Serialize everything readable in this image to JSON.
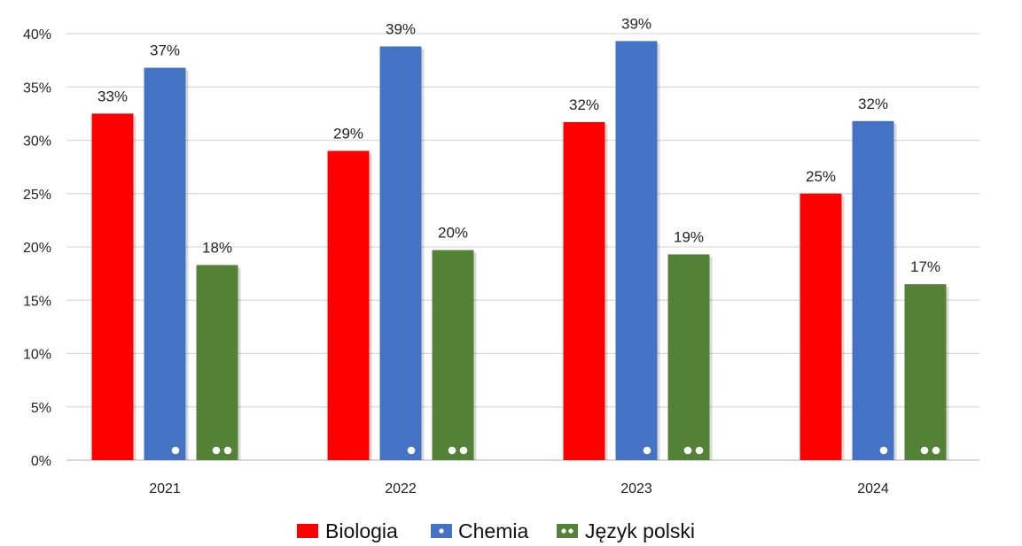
{
  "chart_data": {
    "type": "bar",
    "categories": [
      "2021",
      "2022",
      "2023",
      "2024"
    ],
    "series": [
      {
        "name": "Biologia",
        "color": "#ff0000",
        "pattern": "none",
        "values": [
          32.5,
          29.0,
          31.7,
          25.0
        ],
        "labels": [
          "33%",
          "29%",
          "32%",
          "25%"
        ]
      },
      {
        "name": "Chemia",
        "color": "#4472c4",
        "pattern": "one-dot",
        "values": [
          36.8,
          38.8,
          39.3,
          31.8
        ],
        "labels": [
          "37%",
          "39%",
          "39%",
          "32%"
        ]
      },
      {
        "name": "Język polski",
        "color": "#538135",
        "pattern": "two-dots",
        "values": [
          18.3,
          19.7,
          19.3,
          16.5
        ],
        "labels": [
          "18%",
          "20%",
          "19%",
          "17%"
        ]
      }
    ],
    "ylim": [
      0,
      40
    ],
    "yticks": [
      0,
      5,
      10,
      15,
      20,
      25,
      30,
      35,
      40
    ],
    "ytick_labels": [
      "0%",
      "5%",
      "10%",
      "15%",
      "20%",
      "25%",
      "30%",
      "35%",
      "40%"
    ],
    "grid": true,
    "gridline_color": "#d9d9d9",
    "legend_position": "bottom"
  }
}
